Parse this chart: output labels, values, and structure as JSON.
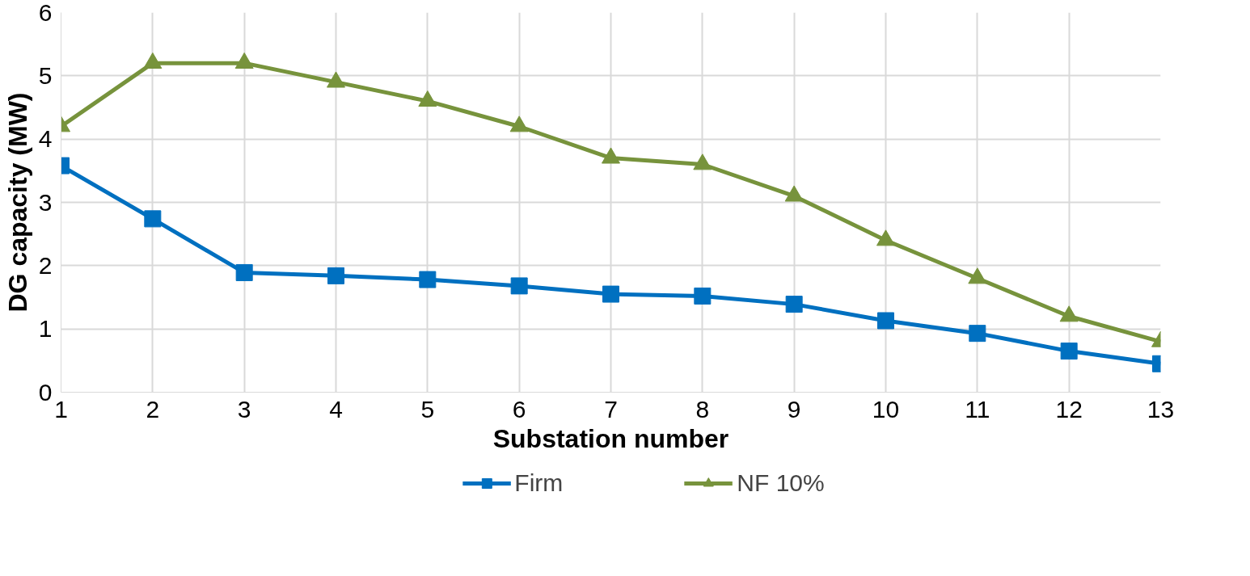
{
  "chart_data": {
    "type": "line",
    "xlabel": "Substation number",
    "ylabel": "DG capacity (MW)",
    "x": [
      1,
      2,
      3,
      4,
      5,
      6,
      7,
      8,
      9,
      10,
      11,
      12,
      13
    ],
    "series": [
      {
        "name": "Firm",
        "color": "#0070c0",
        "marker": "square",
        "values": [
          3.58,
          2.74,
          1.89,
          1.84,
          1.78,
          1.68,
          1.55,
          1.52,
          1.39,
          1.13,
          0.93,
          0.65,
          0.45
        ]
      },
      {
        "name": "NF 10%",
        "color": "#77933c",
        "marker": "triangle",
        "values": [
          4.2,
          5.2,
          5.2,
          4.9,
          4.6,
          4.2,
          3.7,
          3.6,
          3.1,
          2.4,
          1.8,
          1.2,
          0.8
        ]
      }
    ],
    "xlim": [
      1,
      13
    ],
    "xticks": [
      1,
      2,
      3,
      4,
      5,
      6,
      7,
      8,
      9,
      10,
      11,
      12,
      13
    ],
    "ylim": [
      0,
      6
    ],
    "yticks": [
      0,
      1,
      2,
      3,
      4,
      5,
      6
    ],
    "grid": true,
    "legend": "bottom",
    "line_style": "solid"
  }
}
